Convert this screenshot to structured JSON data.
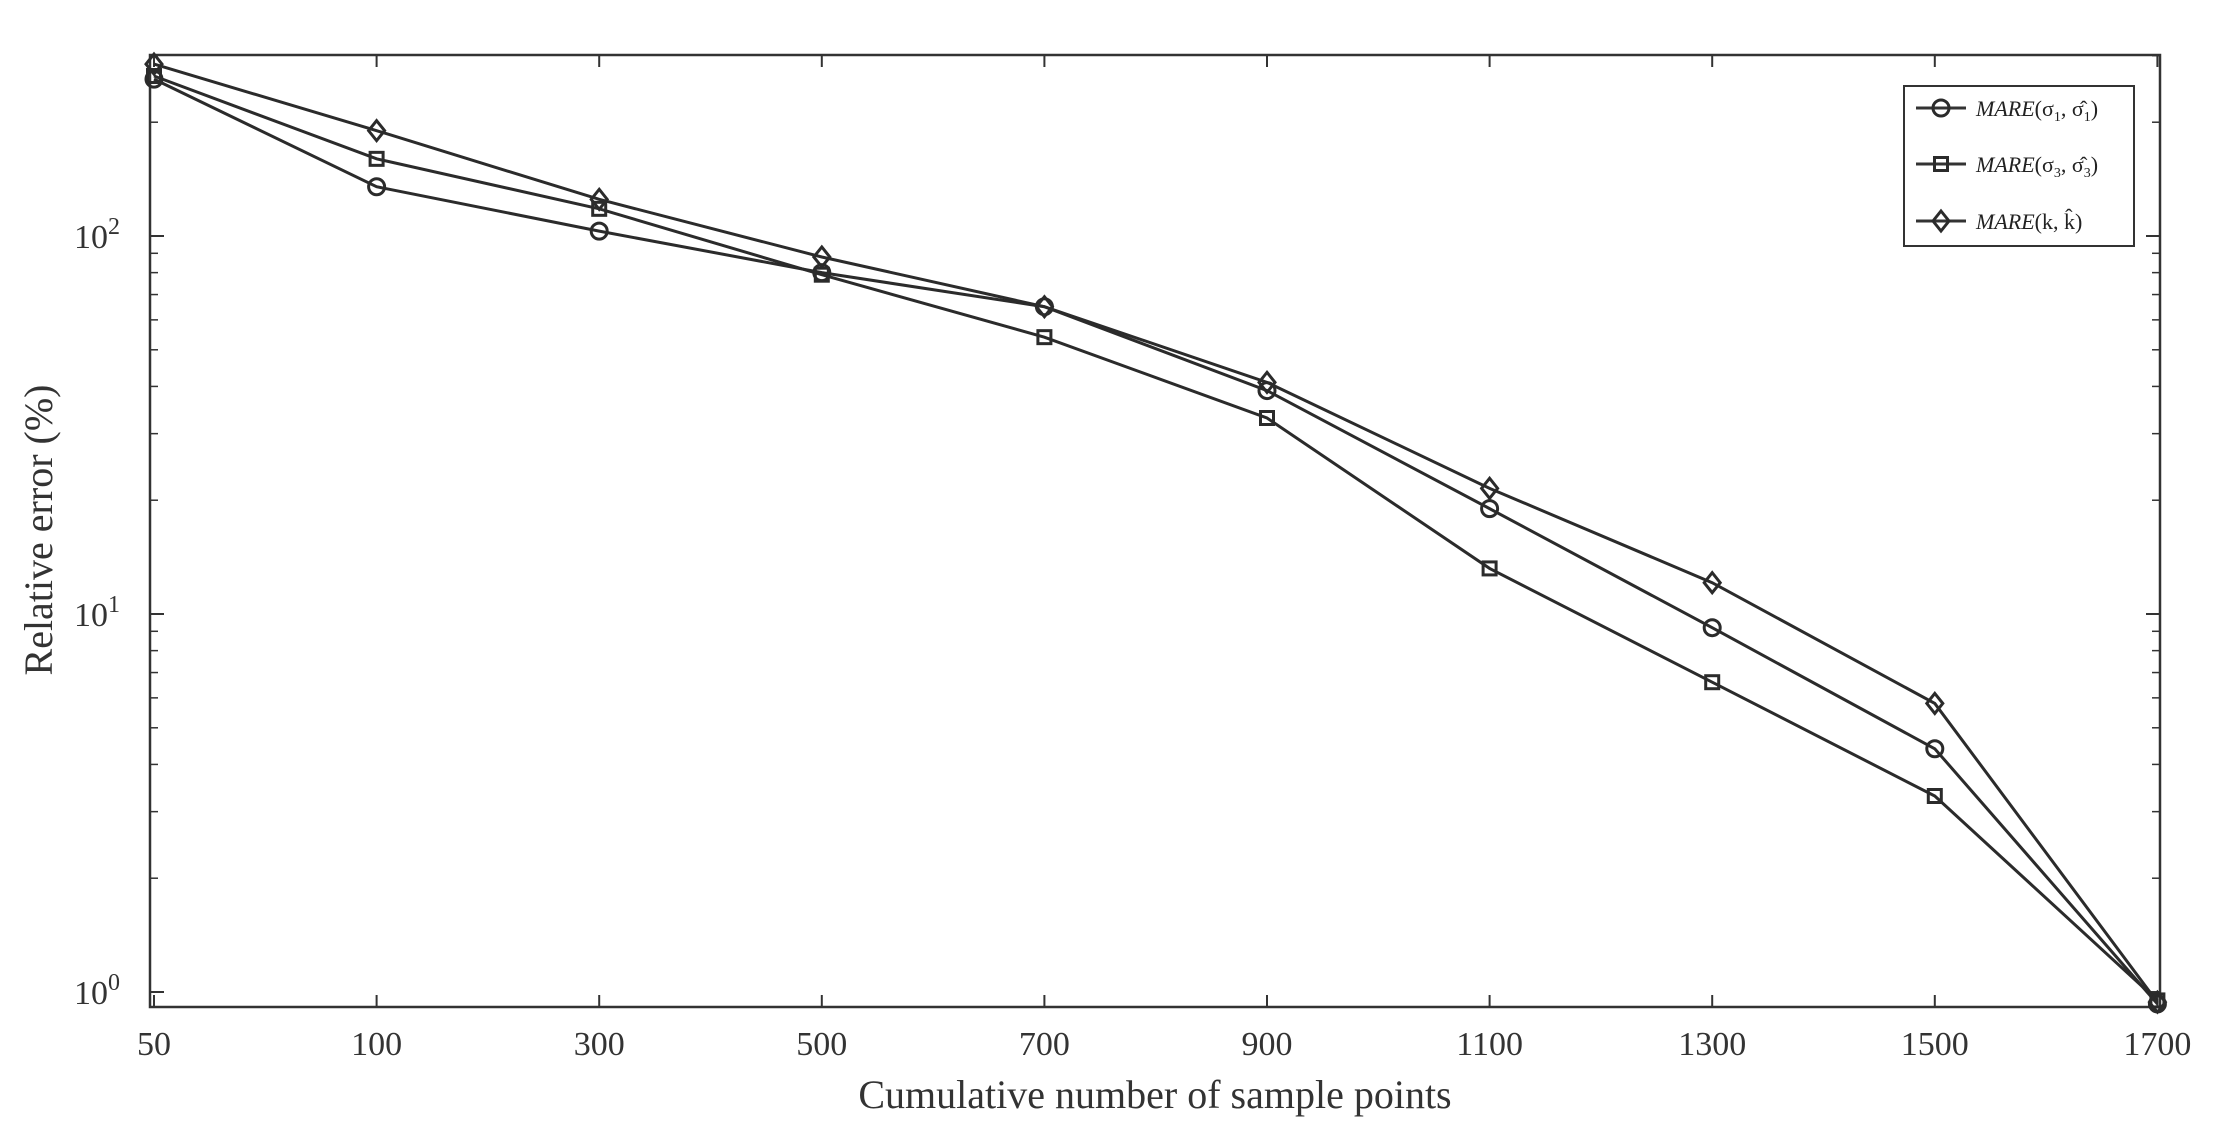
{
  "chart_data": {
    "type": "line",
    "title": "",
    "xlabel": "Cumulative number of sample points",
    "ylabel": "Relative error (%)",
    "x_scale": "categorical-evenly-spaced",
    "categories": [
      "50",
      "100",
      "300",
      "500",
      "700",
      "900",
      "1100",
      "1300",
      "1500",
      "1700"
    ],
    "y_scale": "log",
    "ylim": [
      0.9,
      300
    ],
    "y_ticks": [
      {
        "value": 1,
        "base": "10",
        "exp": "0"
      },
      {
        "value": 10,
        "base": "10",
        "exp": "1"
      },
      {
        "value": 100,
        "base": "10",
        "exp": "2"
      }
    ],
    "grid": false,
    "legend_position": "top-right",
    "series": [
      {
        "name": "MARE(σ1, σ̂1)",
        "marker": "circle",
        "values": [
          260,
          135,
          103,
          80,
          65,
          39,
          19,
          9.2,
          4.4,
          0.93
        ]
      },
      {
        "name": "MARE(σ3, σ̂3)",
        "marker": "square",
        "values": [
          265,
          160,
          118,
          79,
          54,
          33,
          13.2,
          6.6,
          3.3,
          0.95
        ]
      },
      {
        "name": "MARE(k, k̂)",
        "marker": "diamond",
        "values": [
          285,
          190,
          125,
          88,
          65,
          41,
          21.5,
          12.1,
          5.8,
          0.94
        ]
      }
    ],
    "legend": [
      {
        "head": "MARE",
        "arg": "(σ",
        "sub1": "1",
        "mid": ", σ̂",
        "sub2": "1",
        "tail": ")"
      },
      {
        "head": "MARE",
        "arg": "(σ",
        "sub1": "3",
        "mid": ", σ̂",
        "sub2": "3",
        "tail": ")"
      },
      {
        "head": "MARE",
        "arg": "(k, k̂",
        "sub1": "",
        "mid": "",
        "sub2": "",
        "tail": ")"
      }
    ],
    "colors": {
      "line": "#2b2b2b",
      "axis": "#333333",
      "background": "#ffffff"
    }
  }
}
